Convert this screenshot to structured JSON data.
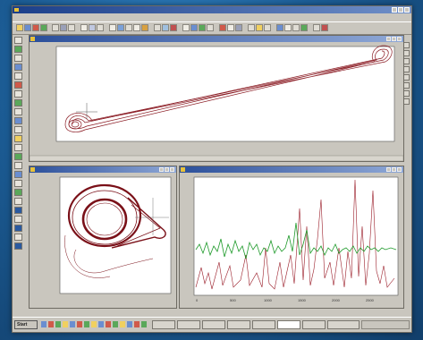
{
  "app": {
    "title": "",
    "menu": [
      "",
      "",
      "",
      "",
      "",
      "",
      ""
    ]
  },
  "windows": [
    {
      "id": "top",
      "title": ""
    },
    {
      "id": "bottom-left",
      "title": ""
    },
    {
      "id": "bottom-right",
      "title": ""
    }
  ],
  "top_plot": {
    "y_ticks": [
      "",
      "",
      "",
      "",
      ""
    ],
    "x_ticks": [
      "",
      "",
      "",
      "",
      "",
      "",
      "",
      "",
      ""
    ],
    "x_label": ""
  },
  "bottom_left_plot": {
    "y_ticks": [
      "",
      "",
      "",
      "",
      "",
      "",
      ""
    ],
    "x_ticks": [
      "",
      "",
      "",
      "",
      ""
    ]
  },
  "bottom_right_plot": {
    "x_ticks": [
      "0",
      "500",
      "1000",
      "1500",
      "2000",
      "2500"
    ]
  },
  "taskbar": {
    "start": "Start",
    "clock": ""
  },
  "colors": {
    "desktop": "#1c5d96",
    "trace_red": "#8a1a22",
    "trace_green": "#1e9a2a"
  }
}
